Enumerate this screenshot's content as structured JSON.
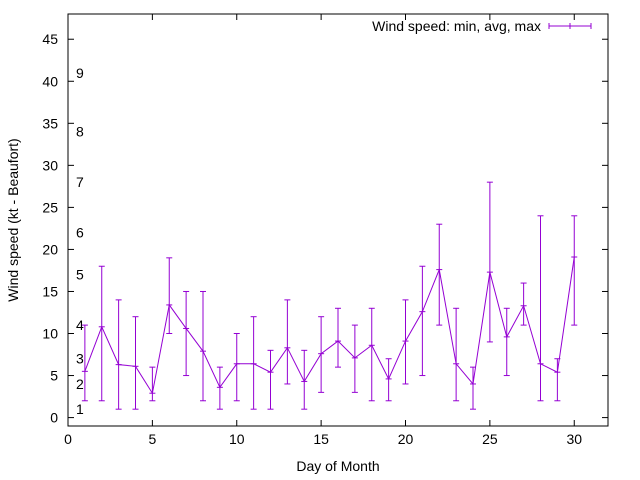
{
  "chart_data": {
    "type": "line",
    "title": "",
    "xlabel": "Day of Month",
    "ylabel": "Wind speed (kt - Beaufort)",
    "xlim": [
      0,
      32
    ],
    "ylim": [
      -1,
      48
    ],
    "x_ticks": [
      0,
      5,
      10,
      15,
      20,
      25,
      30
    ],
    "y_ticks": [
      0,
      5,
      10,
      15,
      20,
      25,
      30,
      35,
      40,
      45
    ],
    "beaufort_labels": [
      {
        "label": "1",
        "y": 1
      },
      {
        "label": "2",
        "y": 4
      },
      {
        "label": "3",
        "y": 7
      },
      {
        "label": "4",
        "y": 11
      },
      {
        "label": "5",
        "y": 17
      },
      {
        "label": "6",
        "y": 22
      },
      {
        "label": "7",
        "y": 28
      },
      {
        "label": "8",
        "y": 34
      },
      {
        "label": "9",
        "y": 41
      }
    ],
    "legend_position": "top-right",
    "grid": false,
    "series": [
      {
        "name": "Wind speed: min, avg, max",
        "color": "#9400d3",
        "x": [
          1,
          2,
          3,
          4,
          5,
          6,
          7,
          8,
          9,
          10,
          11,
          12,
          13,
          14,
          15,
          16,
          17,
          18,
          19,
          20,
          21,
          22,
          23,
          24,
          25,
          26,
          27,
          28,
          29,
          30
        ],
        "avg": [
          5.5,
          10.8,
          6.3,
          6.1,
          2.9,
          13.4,
          10.6,
          7.9,
          3.6,
          6.4,
          6.4,
          5.4,
          8.3,
          4.3,
          7.6,
          9.1,
          7.1,
          8.6,
          4.6,
          9.1,
          12.6,
          17.6,
          6.4,
          4.0,
          17.3,
          9.6,
          13.3,
          6.4,
          5.4,
          19.1
        ],
        "min": [
          2,
          2,
          1,
          1,
          2,
          10,
          5,
          2,
          1,
          2,
          1,
          1,
          4,
          1,
          3,
          6,
          3,
          2,
          2,
          4,
          5,
          11,
          2,
          1,
          9,
          5,
          11,
          2,
          2,
          11
        ],
        "max": [
          11,
          18,
          14,
          12,
          6,
          19,
          15,
          15,
          6,
          10,
          12,
          8,
          14,
          8,
          12,
          13,
          11,
          13,
          7,
          14,
          18,
          23,
          13,
          6,
          28,
          13,
          16,
          24,
          7,
          24
        ]
      }
    ]
  }
}
